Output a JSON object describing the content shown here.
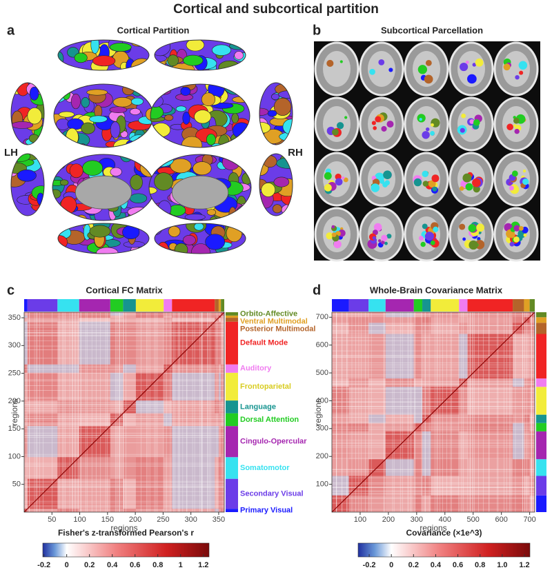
{
  "title": "Cortical and subcortical partition",
  "panels": {
    "a": {
      "letter": "a",
      "title": "Cortical Partition",
      "left_label": "LH",
      "right_label": "RH"
    },
    "b": {
      "letter": "b",
      "title": "Subcortical Parcellation"
    },
    "c": {
      "letter": "c",
      "title": "Cortical FC Matrix",
      "xlabel": "regions",
      "ylabel": "regions",
      "lim": [
        0,
        360
      ],
      "xticks": [
        50,
        100,
        150,
        200,
        250,
        300,
        350
      ],
      "yticks": [
        50,
        100,
        150,
        200,
        250,
        300,
        350
      ],
      "networks": [
        {
          "name": "Primary Visual",
          "color": "#1a1aff",
          "size": 6
        },
        {
          "name": "Secondary Visual",
          "color": "#6b3ce8",
          "size": 54
        },
        {
          "name": "Somatomotor",
          "color": "#36e2f0",
          "size": 39
        },
        {
          "name": "Cingulo-Opercular",
          "color": "#a526b0",
          "size": 56
        },
        {
          "name": "Dorsal Attention",
          "color": "#22cc22",
          "size": 23
        },
        {
          "name": "Language",
          "color": "#169490",
          "size": 23
        },
        {
          "name": "Frontoparietal",
          "color": "#f2ec3a",
          "size": 50
        },
        {
          "name": "Auditory",
          "color": "#f07cf0",
          "size": 15
        },
        {
          "name": "Default Mode",
          "color": "#f02424",
          "size": 77
        },
        {
          "name": "Posterior Multimodal",
          "color": "#b4642a",
          "size": 7
        },
        {
          "name": "Ventral Multimodal",
          "color": "#e0a024",
          "size": 4
        },
        {
          "name": "Orbito-Affective",
          "color": "#628a24",
          "size": 6
        }
      ],
      "colorbar": {
        "label": "Fisher's z-transformed Pearson's r",
        "lim": [
          -0.21,
          1.25
        ],
        "ticks": [
          -0.2,
          0,
          0.2,
          0.4,
          0.6,
          0.8,
          1,
          1.2
        ]
      }
    },
    "d": {
      "letter": "d",
      "title": "Whole-Brain Covariance Matrix",
      "xlabel": "regions",
      "ylabel": "regions",
      "lim": [
        0,
        718
      ],
      "xticks": [
        100,
        200,
        300,
        400,
        500,
        600,
        700
      ],
      "yticks": [
        100,
        200,
        300,
        400,
        500,
        600,
        700
      ],
      "networks": [
        {
          "color": "#1a1aff",
          "size": 60
        },
        {
          "color": "#6b3ce8",
          "size": 70
        },
        {
          "color": "#36e2f0",
          "size": 60
        },
        {
          "color": "#a526b0",
          "size": 100
        },
        {
          "color": "#22cc22",
          "size": 30
        },
        {
          "color": "#169490",
          "size": 30
        },
        {
          "color": "#f2ec3a",
          "size": 100
        },
        {
          "color": "#f07cf0",
          "size": 30
        },
        {
          "color": "#f02424",
          "size": 160
        },
        {
          "color": "#b4642a",
          "size": 40
        },
        {
          "color": "#e0a024",
          "size": 20
        },
        {
          "color": "#628a24",
          "size": 18
        }
      ],
      "colorbar": {
        "label": "Covariance (×1e^3)",
        "lim": [
          -0.3,
          1.25
        ],
        "ticks": [
          -0.2,
          0,
          0.2,
          0.4,
          0.6,
          0.8,
          {
            "value": 1,
            "label": "1.0"
          },
          1.2
        ]
      }
    }
  }
}
